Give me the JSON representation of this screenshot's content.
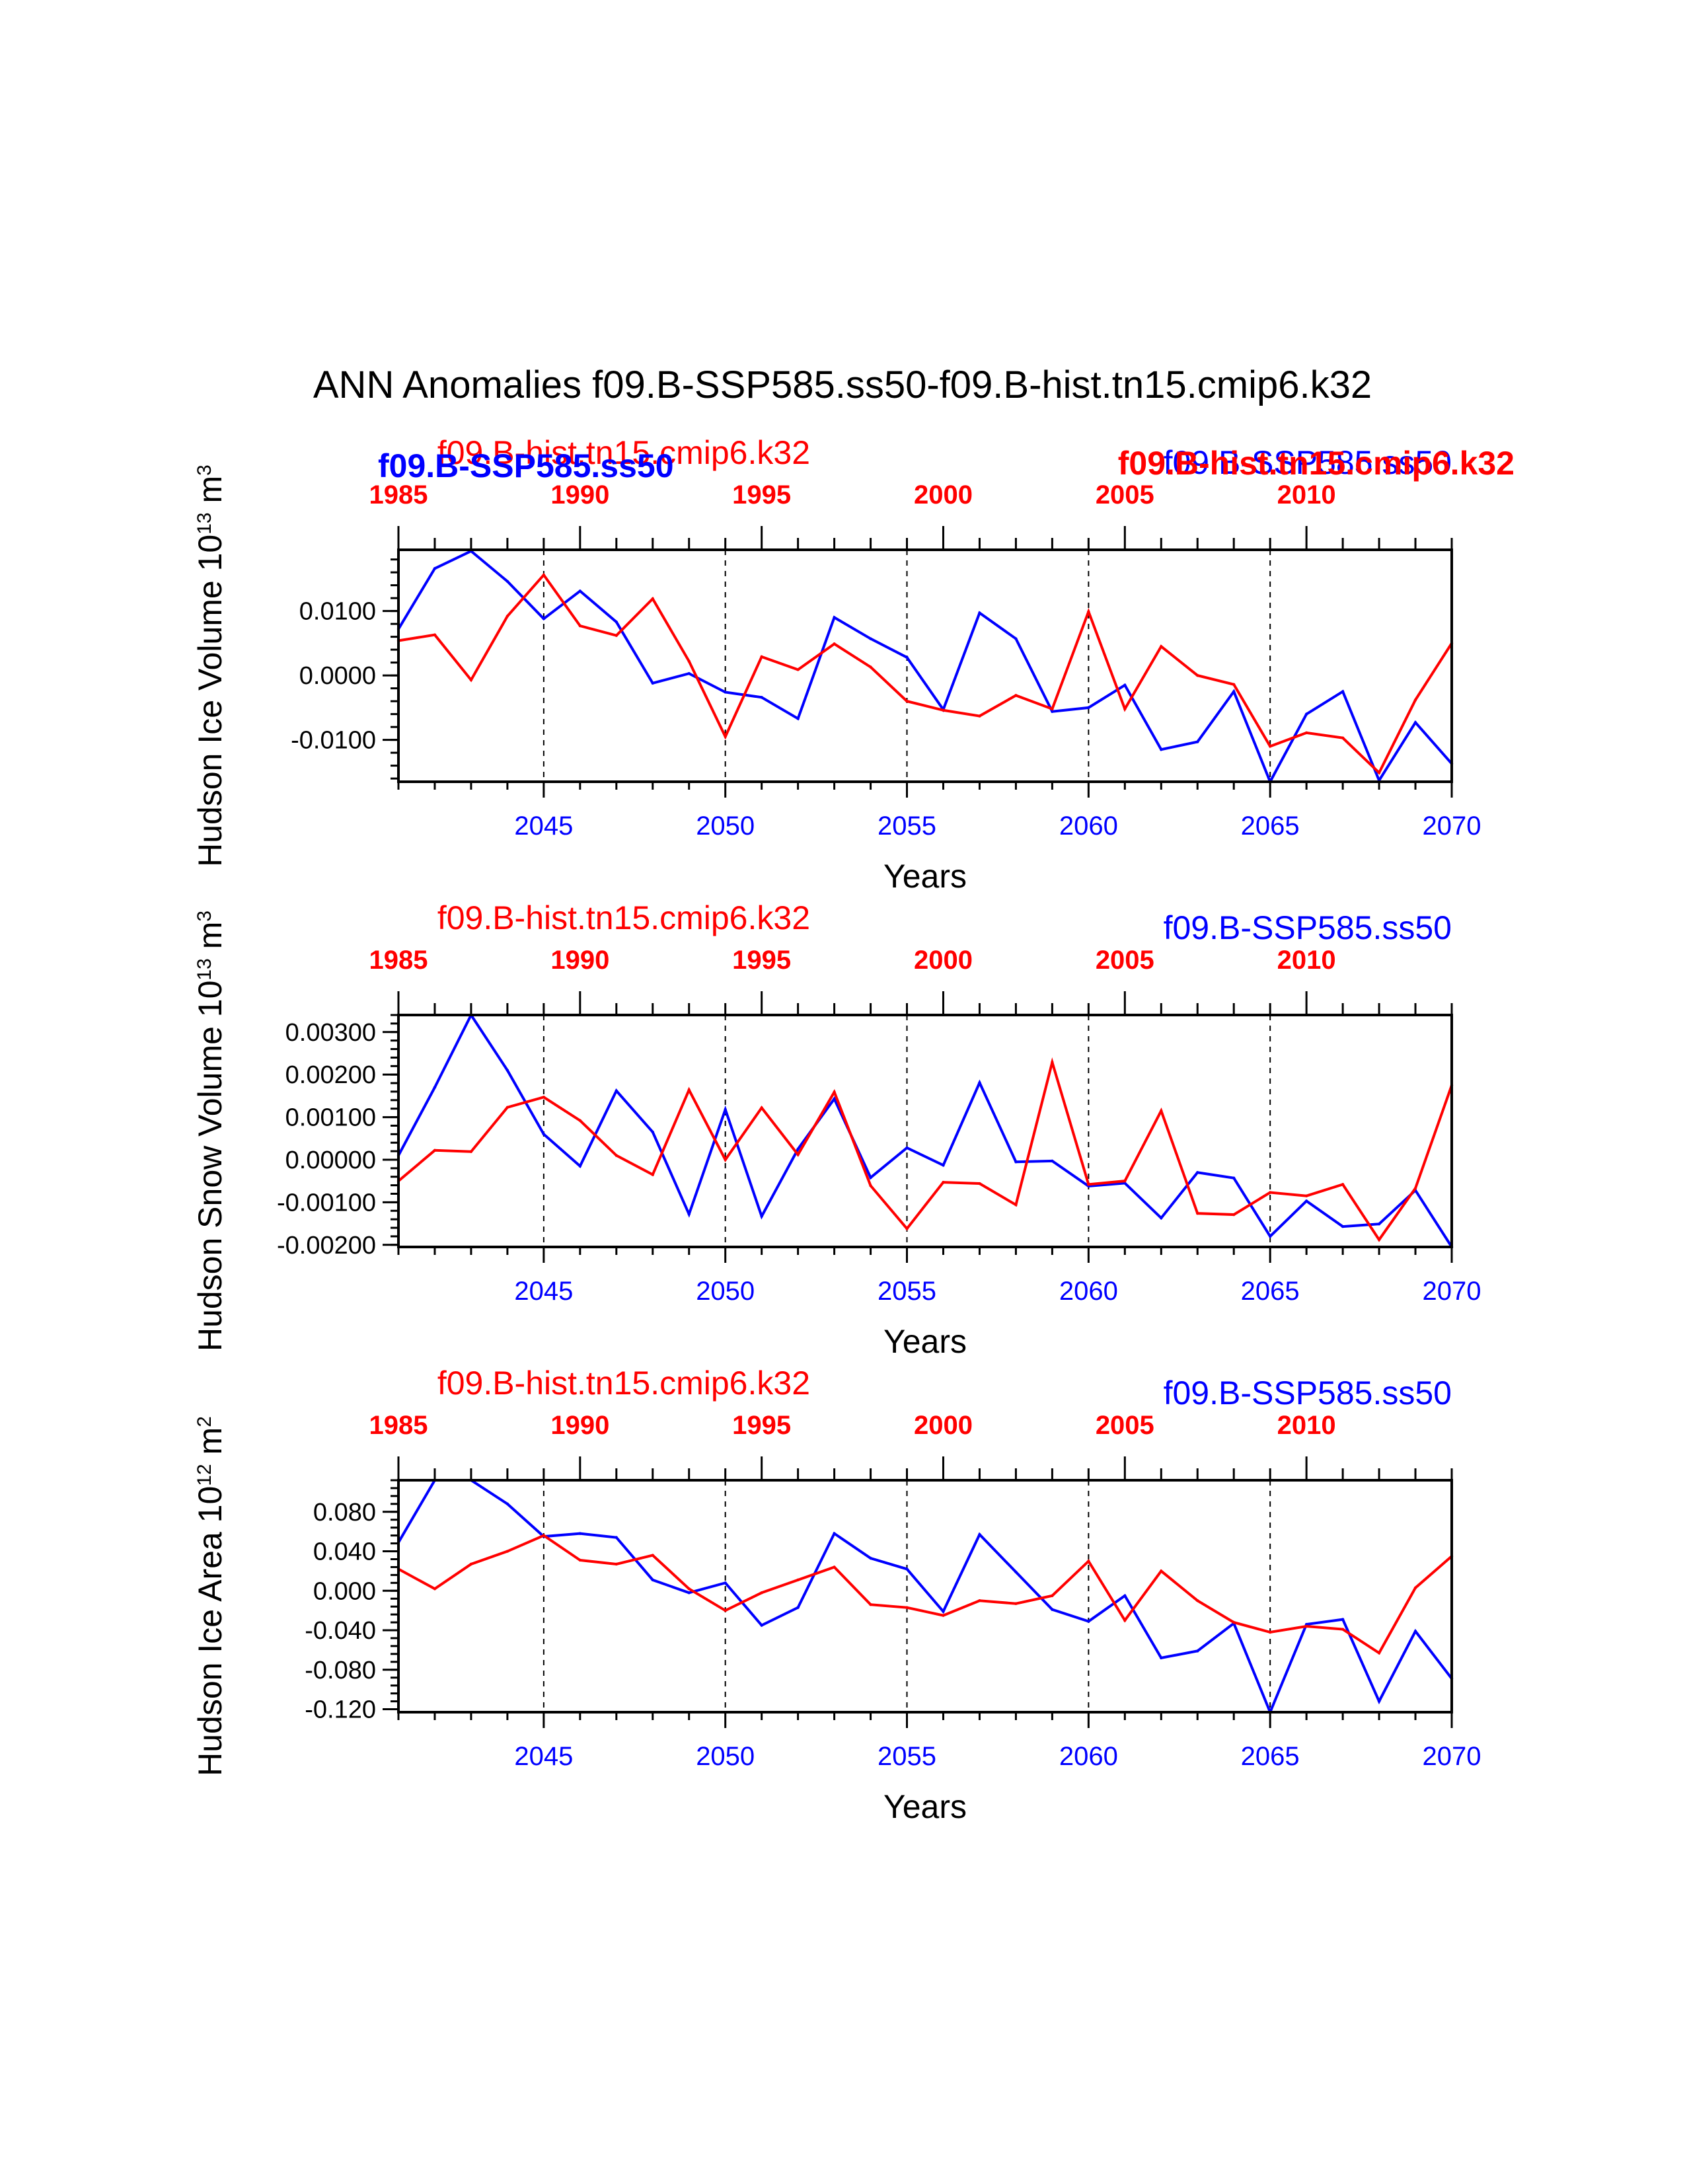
{
  "title": "ANN Anomalies f09.B-SSP585.ss50-f09.B-hist.tn15.cmip6.k32",
  "colors": {
    "ssp585": "#0000ff",
    "hist": "#ff0000",
    "axis": "#000000"
  },
  "chart_data": [
    {
      "type": "line",
      "id": "ice-volume",
      "ylabel": "Hudson Ice Volume 10",
      "ylabel_exp1": "13",
      "ylabel_unit": " m",
      "ylabel_exp2": "3",
      "xlabel": "Years",
      "top_run_label": "f09.B-hist.tn15.cmip6.k32",
      "right_run_label": "f09.B-SSP585.ss50",
      "overlay_labels": [
        "f09.B-SSP585.ss50",
        "f09.B-hist.tn15.cmip6.k32"
      ],
      "ylim": [
        -0.0165,
        0.0195
      ],
      "y_ticks": [
        -0.01,
        0.0,
        0.01
      ],
      "y_tick_labels": [
        "-0.0100",
        "0.0000",
        "0.0100"
      ],
      "xlim_bottom": [
        2041,
        2070
      ],
      "bottom_ticks": [
        2045,
        2050,
        2055,
        2060,
        2065,
        2070
      ],
      "top_ticks": [
        1985,
        1990,
        1995,
        2000,
        2005,
        2010
      ],
      "top_offset": -56,
      "dashed_x": [
        2045,
        2050,
        2055,
        2060,
        2065
      ],
      "series": [
        {
          "name": "f09.B-SSP585.ss50",
          "color": "#0000ff",
          "x": [
            2041,
            2042,
            2043,
            2044,
            2045,
            2046,
            2047,
            2048,
            2049,
            2050,
            2051,
            2052,
            2053,
            2054,
            2055,
            2056,
            2057,
            2058,
            2059,
            2060,
            2061,
            2062,
            2063,
            2064,
            2065,
            2066,
            2067,
            2068,
            2069,
            2070
          ],
          "values": [
            0.0072,
            0.0166,
            0.0193,
            0.0146,
            0.0088,
            0.0131,
            0.0083,
            -0.0012,
            0.0003,
            -0.0026,
            -0.0034,
            -0.0067,
            0.009,
            0.0057,
            0.0028,
            -0.0053,
            0.0097,
            0.0057,
            -0.0056,
            -0.005,
            -0.0015,
            -0.0115,
            -0.0103,
            -0.0025,
            -0.0165,
            -0.006,
            -0.0025,
            -0.0163,
            -0.0073,
            -0.0137
          ]
        },
        {
          "name": "f09.B-hist.tn15.cmip6.k32",
          "color": "#ff0000",
          "x": [
            2041,
            2042,
            2043,
            2044,
            2045,
            2046,
            2047,
            2048,
            2049,
            2050,
            2051,
            2052,
            2053,
            2054,
            2055,
            2056,
            2057,
            2058,
            2059,
            2060,
            2061,
            2062,
            2063,
            2064,
            2065,
            2066,
            2067,
            2068,
            2069,
            2070
          ],
          "values": [
            0.0054,
            0.0063,
            -0.0007,
            0.0092,
            0.0156,
            0.0077,
            0.0062,
            0.0119,
            0.0022,
            -0.0095,
            0.0029,
            0.0009,
            0.0049,
            0.0013,
            -0.004,
            -0.0054,
            -0.0063,
            -0.0031,
            -0.0052,
            0.0099,
            -0.0052,
            0.0045,
            0.0,
            -0.0014,
            -0.011,
            -0.0089,
            -0.0097,
            -0.0151,
            -0.0038,
            0.005
          ]
        }
      ]
    },
    {
      "type": "line",
      "id": "snow-volume",
      "ylabel": "Hudson Snow Volume 10",
      "ylabel_exp1": "13",
      "ylabel_unit": " m",
      "ylabel_exp2": "3",
      "xlabel": "Years",
      "top_run_label": "f09.B-hist.tn15.cmip6.k32",
      "right_run_label": "f09.B-SSP585.ss50",
      "overlay_labels": [],
      "ylim": [
        -0.00205,
        0.0034
      ],
      "y_ticks": [
        -0.002,
        -0.001,
        0.0,
        0.001,
        0.002,
        0.003
      ],
      "y_tick_labels": [
        "-0.00200",
        "-0.00100",
        "0.00000",
        "0.00100",
        "0.00200",
        "0.00300"
      ],
      "xlim_bottom": [
        2041,
        2070
      ],
      "bottom_ticks": [
        2045,
        2050,
        2055,
        2060,
        2065,
        2070
      ],
      "top_ticks": [
        1985,
        1990,
        1995,
        2000,
        2005,
        2010
      ],
      "top_offset": -56,
      "dashed_x": [
        2045,
        2050,
        2055,
        2060,
        2065
      ],
      "series": [
        {
          "name": "f09.B-SSP585.ss50",
          "color": "#0000ff",
          "x": [
            2041,
            2042,
            2043,
            2044,
            2045,
            2046,
            2047,
            2048,
            2049,
            2050,
            2051,
            2052,
            2053,
            2054,
            2055,
            2056,
            2057,
            2058,
            2059,
            2060,
            2061,
            2062,
            2063,
            2064,
            2065,
            2066,
            2067,
            2068,
            2069,
            2070
          ],
          "values": [
            0.0001,
            0.0017,
            0.0034,
            0.0021,
            0.0006,
            -0.00015,
            0.00162,
            0.00065,
            -0.00128,
            0.00118,
            -0.00133,
            0.00025,
            0.00143,
            -0.00042,
            0.00028,
            -0.00013,
            0.00181,
            -5e-05,
            -3e-05,
            -0.00062,
            -0.00055,
            -0.00137,
            -0.0003,
            -0.00043,
            -0.0018,
            -0.00097,
            -0.00157,
            -0.00151,
            -0.00072,
            -0.00205
          ]
        },
        {
          "name": "f09.B-hist.tn15.cmip6.k32",
          "color": "#ff0000",
          "x": [
            2041,
            2042,
            2043,
            2044,
            2045,
            2046,
            2047,
            2048,
            2049,
            2050,
            2051,
            2052,
            2053,
            2054,
            2055,
            2056,
            2057,
            2058,
            2059,
            2060,
            2061,
            2062,
            2063,
            2064,
            2065,
            2066,
            2067,
            2068,
            2069,
            2070
          ],
          "values": [
            -0.0005,
            0.00022,
            0.00019,
            0.00123,
            0.00147,
            0.00092,
            0.0001,
            -0.00035,
            0.00164,
            0.0,
            0.00122,
            0.00012,
            0.00159,
            -0.00061,
            -0.00162,
            -0.00053,
            -0.00056,
            -0.00106,
            0.00229,
            -0.00058,
            -0.0005,
            0.00115,
            -0.00126,
            -0.00129,
            -0.00077,
            -0.00085,
            -0.00058,
            -0.00188,
            -0.00067,
            0.00175
          ]
        }
      ]
    },
    {
      "type": "line",
      "id": "ice-area",
      "ylabel": "Hudson Ice Area 10",
      "ylabel_exp1": "12",
      "ylabel_unit": " m",
      "ylabel_exp2": "2",
      "xlabel": "Years",
      "top_run_label": "f09.B-hist.tn15.cmip6.k32",
      "right_run_label": "f09.B-SSP585.ss50",
      "overlay_labels": [],
      "ylim": [
        -0.123,
        0.112
      ],
      "y_ticks": [
        -0.12,
        -0.08,
        -0.04,
        0.0,
        0.04,
        0.08
      ],
      "y_tick_labels": [
        "-0.120",
        "-0.080",
        "-0.040",
        "0.000",
        "0.040",
        "0.080"
      ],
      "xlim_bottom": [
        2041,
        2070
      ],
      "bottom_ticks": [
        2045,
        2050,
        2055,
        2060,
        2065,
        2070
      ],
      "top_ticks": [
        1985,
        1990,
        1995,
        2000,
        2005,
        2010
      ],
      "top_offset": -56,
      "dashed_x": [
        2045,
        2050,
        2055,
        2060,
        2065
      ],
      "series": [
        {
          "name": "f09.B-SSP585.ss50",
          "color": "#0000ff",
          "x": [
            2041,
            2042,
            2043,
            2044,
            2045,
            2046,
            2047,
            2048,
            2049,
            2050,
            2051,
            2052,
            2053,
            2054,
            2055,
            2056,
            2057,
            2058,
            2059,
            2060,
            2061,
            2062,
            2063,
            2064,
            2065,
            2066,
            2067,
            2068,
            2069,
            2070
          ],
          "values": [
            0.049,
            0.112,
            0.112,
            0.088,
            0.055,
            0.058,
            0.054,
            0.011,
            -0.002,
            0.008,
            -0.035,
            -0.017,
            0.058,
            0.033,
            0.022,
            -0.021,
            0.057,
            0.019,
            -0.019,
            -0.031,
            -0.005,
            -0.068,
            -0.061,
            -0.033,
            -0.123,
            -0.034,
            -0.029,
            -0.112,
            -0.041,
            -0.089
          ]
        },
        {
          "name": "f09.B-hist.tn15.cmip6.k32",
          "color": "#ff0000",
          "x": [
            2041,
            2042,
            2043,
            2044,
            2045,
            2046,
            2047,
            2048,
            2049,
            2050,
            2051,
            2052,
            2053,
            2054,
            2055,
            2056,
            2057,
            2058,
            2059,
            2060,
            2061,
            2062,
            2063,
            2064,
            2065,
            2066,
            2067,
            2068,
            2069,
            2070
          ],
          "values": [
            0.022,
            0.002,
            0.027,
            0.04,
            0.056,
            0.031,
            0.027,
            0.036,
            0.002,
            -0.02,
            -0.002,
            0.011,
            0.024,
            -0.014,
            -0.017,
            -0.025,
            -0.01,
            -0.013,
            -0.005,
            0.03,
            -0.03,
            0.02,
            -0.01,
            -0.032,
            -0.042,
            -0.036,
            -0.039,
            -0.063,
            0.003,
            0.035
          ]
        }
      ]
    }
  ]
}
